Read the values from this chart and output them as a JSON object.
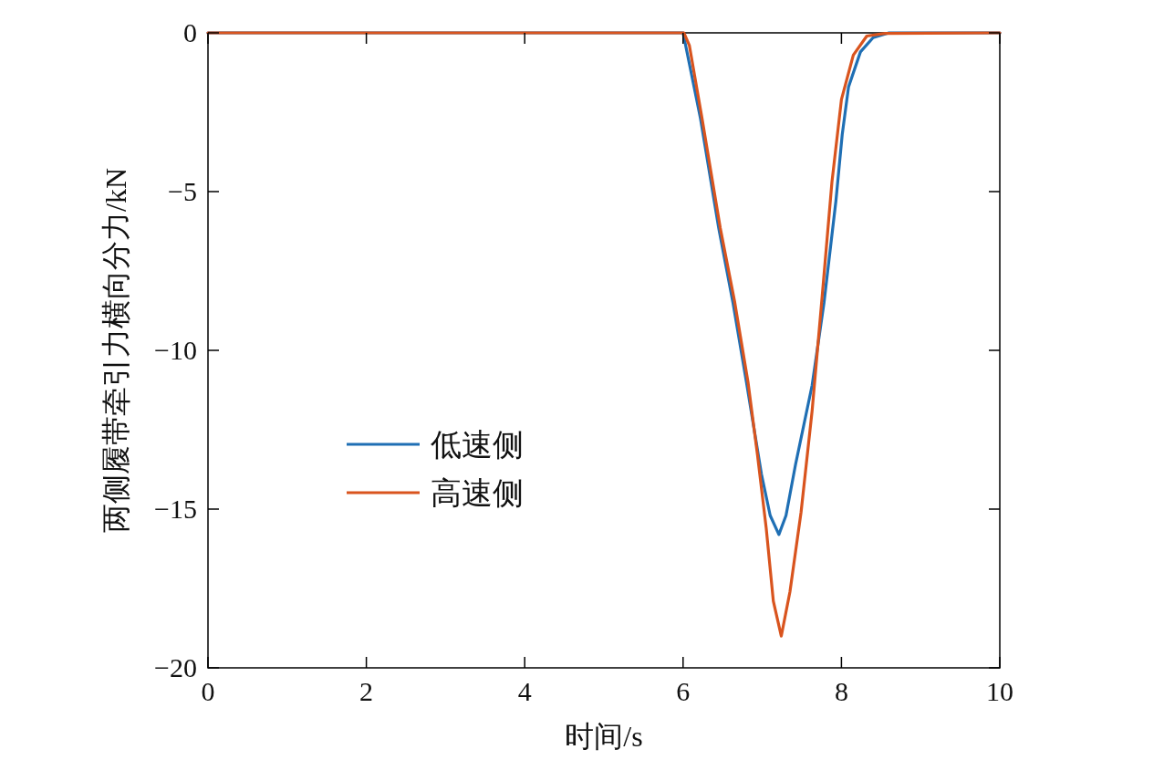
{
  "chart_data": {
    "type": "line",
    "xlabel": "时间/s",
    "ylabel": "两侧履带牵引力横向分力/kN",
    "xlim": [
      0,
      10
    ],
    "ylim": [
      -20,
      0
    ],
    "xticks": [
      0,
      2,
      4,
      6,
      8,
      10
    ],
    "yticks": [
      {
        "value": -20,
        "label": "−20"
      },
      {
        "value": -15,
        "label": "−15"
      },
      {
        "value": -10,
        "label": "−10"
      },
      {
        "value": -5,
        "label": "−5"
      },
      0
    ],
    "legend": "left",
    "grid": false,
    "line_style": "solid",
    "marker": "none",
    "series": [
      {
        "name": "低速侧",
        "color": "#1f6fb4",
        "x": [
          0,
          6.0,
          6.22,
          6.45,
          6.63,
          6.8,
          6.99,
          7.1,
          7.21,
          7.3,
          7.42,
          7.63,
          7.78,
          7.93,
          8.01,
          8.09,
          8.24,
          8.4,
          8.6,
          10
        ],
        "values": [
          0,
          0,
          -2.7,
          -6.15,
          -8.5,
          -11.0,
          -13.9,
          -15.2,
          -15.8,
          -15.2,
          -13.6,
          -11.1,
          -8.5,
          -5.3,
          -3.2,
          -1.7,
          -0.6,
          -0.15,
          0,
          0
        ]
      },
      {
        "name": "高速侧",
        "color": "#d9541e",
        "x": [
          0,
          6.01,
          6.08,
          6.24,
          6.47,
          6.65,
          6.82,
          6.94,
          7.05,
          7.14,
          7.24,
          7.35,
          7.49,
          7.63,
          7.76,
          7.88,
          8.0,
          8.15,
          8.32,
          8.55,
          10
        ],
        "values": [
          0,
          0,
          -0.4,
          -2.7,
          -6.15,
          -8.45,
          -11.0,
          -13.3,
          -15.6,
          -17.9,
          -19.0,
          -17.6,
          -15.1,
          -11.9,
          -8.2,
          -4.7,
          -2.1,
          -0.7,
          -0.1,
          -0.02,
          0
        ]
      }
    ]
  }
}
